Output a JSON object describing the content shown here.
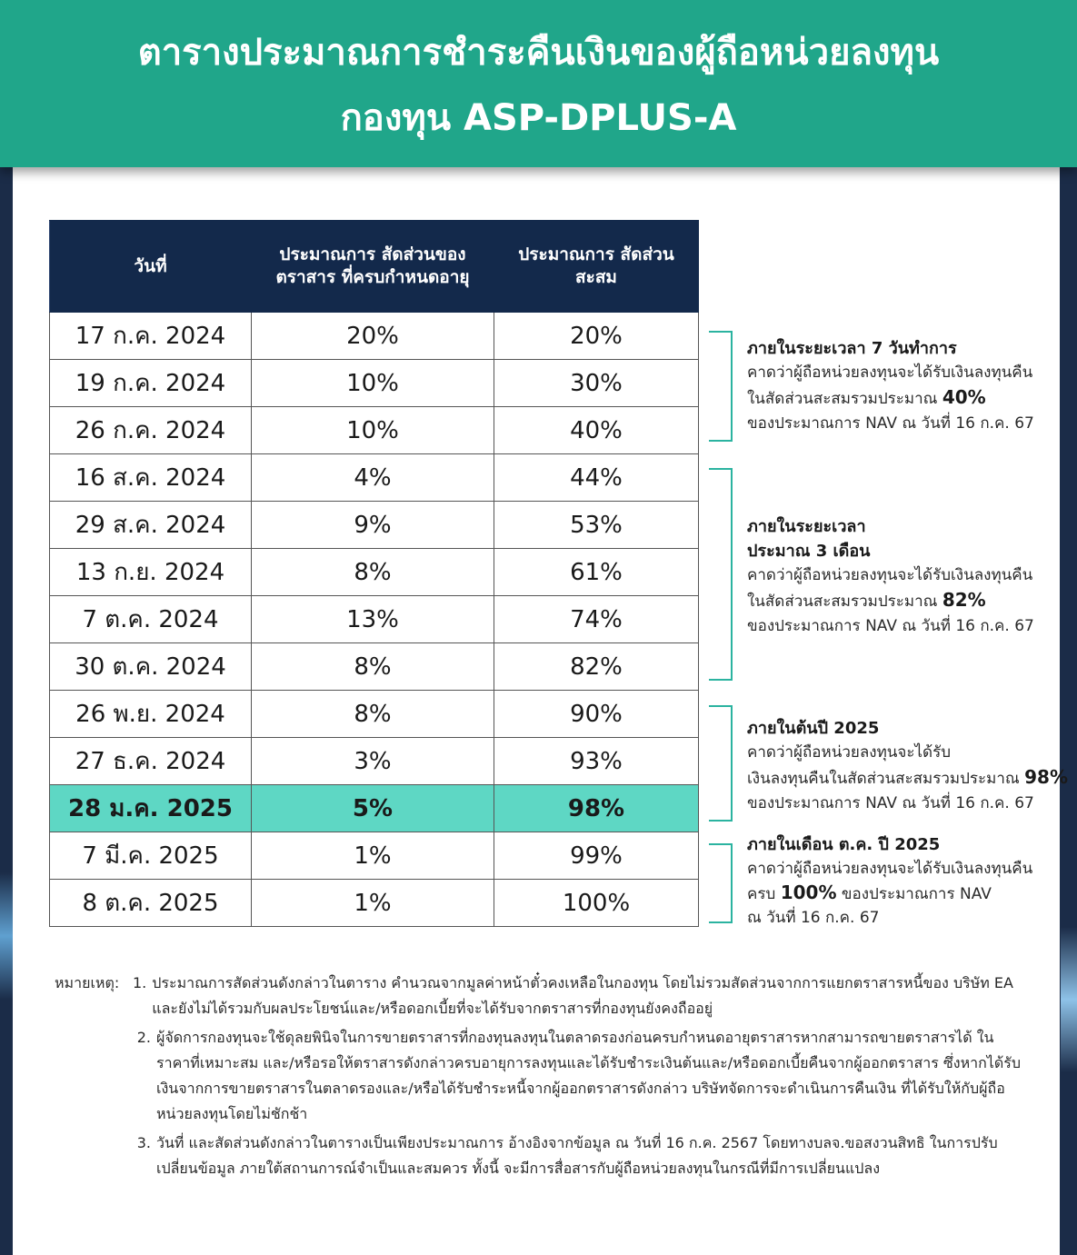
{
  "title": {
    "line1": "ตารางประมาณการชำระคืนเงินของผู้ถือหน่วยลงทุน",
    "line2": "กองทุน ASP-DPLUS-A"
  },
  "table": {
    "headers": {
      "date": "วันที่",
      "maturing_ratio": "ประมาณการ สัดส่วนของตราสาร ที่ครบกำหนดอายุ",
      "cumulative_ratio": "ประมาณการ สัดส่วนสะสม"
    },
    "rows": [
      {
        "date": "17 ก.ค. 2024",
        "pct": "20%",
        "cum": "20%"
      },
      {
        "date": "19 ก.ค. 2024",
        "pct": "10%",
        "cum": "30%"
      },
      {
        "date": "26 ก.ค. 2024",
        "pct": "10%",
        "cum": "40%"
      },
      {
        "date": "16 ส.ค. 2024",
        "pct": "4%",
        "cum": "44%"
      },
      {
        "date": "29 ส.ค. 2024",
        "pct": "9%",
        "cum": "53%"
      },
      {
        "date": "13 ก.ย. 2024",
        "pct": "8%",
        "cum": "61%"
      },
      {
        "date": "7 ต.ค. 2024",
        "pct": "13%",
        "cum": "74%"
      },
      {
        "date": "30 ต.ค. 2024",
        "pct": "8%",
        "cum": "82%"
      },
      {
        "date": "26 พ.ย. 2024",
        "pct": "8%",
        "cum": "90%"
      },
      {
        "date": "27 ธ.ค. 2024",
        "pct": "3%",
        "cum": "93%"
      },
      {
        "date": "28 ม.ค. 2025",
        "pct": "5%",
        "cum": "98%"
      },
      {
        "date": "7 มี.ค. 2025",
        "pct": "1%",
        "cum": "99%"
      },
      {
        "date": "8 ต.ค. 2025",
        "pct": "1%",
        "cum": "100%"
      }
    ]
  },
  "side_notes": [
    {
      "head": "ภายในระยะเวลา 7 วันทำการ",
      "line1": "คาดว่าผู้ถือหน่วยลงทุนจะได้รับเงินลงทุนคืน",
      "line2_pre": "ในสัดส่วนสะสมรวมประมาณ",
      "line2_bold": "40%",
      "line3": "ของประมาณการ NAV ณ วันที่ 16 ก.ค. 67"
    },
    {
      "head1": "ภายในระยะเวลา",
      "head2": "ประมาณ 3 เดือน",
      "line1": "คาดว่าผู้ถือหน่วยลงทุนจะได้รับเงินลงทุนคืน",
      "line2_pre": "ในสัดส่วนสะสมรวมประมาณ",
      "line2_bold": "82%",
      "line3": "ของประมาณการ NAV ณ วันที่ 16 ก.ค. 67"
    },
    {
      "head": "ภายในต้นปี 2025",
      "line1": "คาดว่าผู้ถือหน่วยลงทุนจะได้รับ",
      "line2_pre": "เงินลงทุนคืนในสัดส่วนสะสมรวมประมาณ",
      "line2_bold": "98%",
      "line3": "ของประมาณการ NAV ณ วันที่ 16 ก.ค. 67"
    },
    {
      "head": "ภายในเดือน ต.ค. ปี 2025",
      "line1": "คาดว่าผู้ถือหน่วยลงทุนจะได้รับเงินลงทุนคืน",
      "line2_pre": "ครบ",
      "line2_bold": "100%",
      "line2_post": "ของประมาณการ NAV",
      "line3": "ณ วันที่ 16 ก.ค. 67"
    }
  ],
  "footnotes": {
    "label": "หมายเหตุ:",
    "items": [
      {
        "num": "1.",
        "text": "ประมาณการสัดส่วนดังกล่าวในตาราง คำนวณจากมูลค่าหน้าตั๋วคงเหลือในกองทุน โดยไม่รวมสัดส่วนจากการแยกตราสารหนี้ของ บริษัท EA และยังไม่ได้รวมกับผลประโยชน์และ/หรือดอกเบี้ยที่จะได้รับจากตราสารที่กองทุนยังคงถืออยู่"
      },
      {
        "num": "2.",
        "text": "ผู้จัดการกองทุนจะใช้ดุลยพินิจในการขายตราสารที่กองทุนลงทุนในตลาดรองก่อนครบกำหนดอายุตราสารหากสามารถขายตราสารได้ ในราคาที่เหมาะสม และ/หรือรอให้ตราสารดังกล่าวครบอายุการลงทุนและได้รับชำระเงินต้นและ/หรือดอกเบี้ยคืนจากผู้ออกตราสาร ซึ่งหากได้รับเงินจากการขายตราสารในตลาดรองและ/หรือได้รับชำระหนี้จากผู้ออกตราสารดังกล่าว บริษัทจัดการจะดำเนินการคืนเงิน ที่ได้รับให้กับผู้ถือหน่วยลงทุนโดยไม่ชักช้า"
      },
      {
        "num": "3.",
        "text": "วันที่ และสัดส่วนดังกล่าวในตารางเป็นเพียงประมาณการ อ้างอิงจากข้อมูล ณ วันที่ 16 ก.ค. 2567 โดยทางบลจ.ขอสงวนสิทธิ ในการปรับเปลี่ยนข้อมูล ภายใต้สถานการณ์จำเป็นและสมควร ทั้งนี้ จะมีการสื่อสารกับผู้ถือหน่วยลงทุนในกรณีที่มีการเปลี่ยนแปลง"
      }
    ]
  },
  "colors": {
    "header_bg": "#20a68a",
    "table_header_bg": "#13294b",
    "highlight_row": "#5ed7c4",
    "bracket": "#2bb3a0",
    "page_bg": "#1b2c48"
  }
}
